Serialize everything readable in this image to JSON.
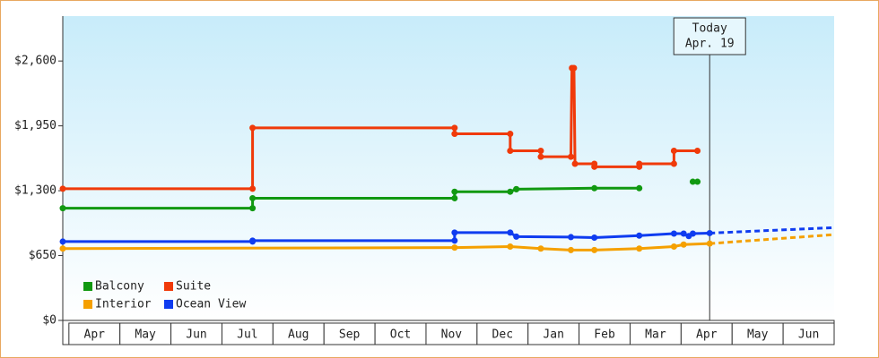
{
  "chart_data": {
    "type": "line",
    "xlim": [
      -0.12,
      15
    ],
    "xticks": [
      {
        "value": 0.5,
        "label": "Apr"
      },
      {
        "value": 1.5,
        "label": "May"
      },
      {
        "value": 2.5,
        "label": "Jun"
      },
      {
        "value": 3.5,
        "label": "Jul"
      },
      {
        "value": 4.5,
        "label": "Aug"
      },
      {
        "value": 5.5,
        "label": "Sep"
      },
      {
        "value": 6.5,
        "label": "Oct"
      },
      {
        "value": 7.5,
        "label": "Nov"
      },
      {
        "value": 8.5,
        "label": "Dec"
      },
      {
        "value": 9.5,
        "label": "Jan"
      },
      {
        "value": 10.5,
        "label": "Feb"
      },
      {
        "value": 11.5,
        "label": "Mar"
      },
      {
        "value": 12.5,
        "label": "Apr"
      },
      {
        "value": 13.5,
        "label": "May"
      },
      {
        "value": 14.5,
        "label": "Jun"
      }
    ],
    "ylim": [
      0,
      3050
    ],
    "yticks": [
      {
        "value": 0,
        "label": "$0"
      },
      {
        "value": 650,
        "label": "$650"
      },
      {
        "value": 1300,
        "label": "$1,300"
      },
      {
        "value": 1950,
        "label": "$1,950"
      },
      {
        "value": 2600,
        "label": "$2,600"
      }
    ],
    "annotations": [
      {
        "x": 12.56,
        "lines": [
          "Today",
          "Apr. 19"
        ]
      }
    ],
    "series": [
      {
        "name": "Balcony",
        "color": "#119911",
        "x": [
          -0.12,
          3.6,
          3.6,
          7.56,
          7.56,
          8.65,
          8.77,
          8.77,
          10.3,
          11.18,
          11.5,
          12.23,
          12.32
        ],
        "values": [
          1125,
          1125,
          1225,
          1225,
          1290,
          1290,
          1315,
          1315,
          1325,
          1325,
          null,
          1390,
          1390
        ]
      },
      {
        "name": "Suite",
        "color": "#f03a0a",
        "x": [
          -0.12,
          3.6,
          3.6,
          7.56,
          7.56,
          8.65,
          8.65,
          9.25,
          9.25,
          9.84,
          9.86,
          9.9,
          9.92,
          10.3,
          10.3,
          11.18,
          11.18,
          11.86,
          11.86,
          12.32
        ],
        "values": [
          1320,
          1320,
          1930,
          1930,
          1870,
          1870,
          1700,
          1700,
          1640,
          1640,
          2530,
          2530,
          1570,
          1570,
          1540,
          1540,
          1570,
          1570,
          1700,
          1700
        ]
      },
      {
        "name": "Interior",
        "color": "#f5a000",
        "x": [
          -0.12,
          7.56,
          8.65,
          9.25,
          9.84,
          10.3,
          11.18,
          11.86,
          12.05,
          12.56
        ],
        "values": [
          720,
          730,
          740,
          720,
          705,
          705,
          720,
          740,
          760,
          770
        ],
        "forecast": {
          "x": [
            12.56,
            15
          ],
          "values": [
            770,
            860
          ]
        }
      },
      {
        "name": "Ocean View",
        "color": "#0f3cf0",
        "x": [
          -0.12,
          3.6,
          3.6,
          7.56,
          7.56,
          8.65,
          8.77,
          9.84,
          10.3,
          11.18,
          11.86,
          12.05,
          12.15,
          12.23,
          12.56
        ],
        "values": [
          790,
          790,
          800,
          800,
          880,
          880,
          840,
          835,
          830,
          850,
          870,
          870,
          845,
          870,
          875
        ],
        "forecast": {
          "x": [
            12.56,
            15
          ],
          "values": [
            875,
            930
          ]
        }
      }
    ]
  }
}
